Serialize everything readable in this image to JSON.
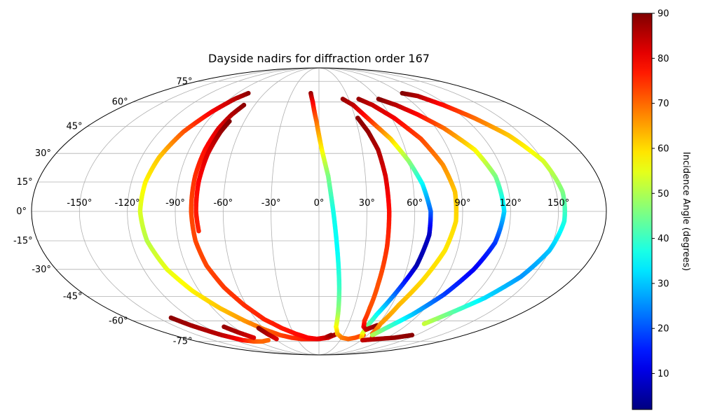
{
  "chart_data": {
    "type": "scatter",
    "title": "Dayside nadirs for diffraction order 167",
    "projection": "mollweide",
    "grid": true,
    "lon_ticks": [
      -150,
      -120,
      -90,
      -60,
      -30,
      0,
      30,
      60,
      90,
      120,
      150
    ],
    "lat_ticks": [
      -75,
      -60,
      -45,
      -30,
      -15,
      0,
      15,
      30,
      45,
      60,
      75
    ],
    "lon_tick_labels": [
      "-150°",
      "-120°",
      "-90°",
      "-60°",
      "-30°",
      "0°",
      "30°",
      "60°",
      "90°",
      "120°",
      "150°"
    ],
    "lat_tick_labels": [
      "-75°",
      "-60°",
      "-45°",
      "-30°",
      "-15°",
      "0°",
      "15°",
      "30°",
      "45°",
      "60°",
      "75°"
    ],
    "colorbar": {
      "label": "Incidence Angle (degrees)",
      "colormap": "jet",
      "range": [
        2,
        90
      ],
      "ticks": [
        10,
        20,
        30,
        40,
        50,
        60,
        70,
        80,
        90
      ]
    },
    "series": [
      {
        "points": [
          [
            -78,
            66,
            89
          ],
          [
            -85,
            62,
            85
          ],
          [
            -93,
            54,
            80
          ],
          [
            -102,
            42,
            72
          ],
          [
            -108,
            28,
            62
          ],
          [
            -111,
            15,
            58
          ],
          [
            -112,
            0,
            54
          ],
          [
            -110,
            -15,
            51
          ],
          [
            -104,
            -30,
            55
          ],
          [
            -95,
            -42,
            58
          ],
          [
            -84,
            -52,
            62
          ],
          [
            -72,
            -60,
            66
          ],
          [
            -60,
            -66,
            70
          ],
          [
            -48,
            -70,
            73
          ],
          [
            -36,
            -72,
            75
          ],
          [
            -24,
            -73,
            76
          ],
          [
            -12,
            -73,
            77
          ],
          [
            0,
            -73,
            78
          ],
          [
            12,
            -72,
            82
          ],
          [
            22,
            -69,
            87
          ]
        ]
      },
      {
        "points": [
          [
            -70,
            58,
            89
          ],
          [
            -74,
            52,
            86
          ],
          [
            -77,
            44,
            82
          ],
          [
            -79,
            32,
            78
          ],
          [
            -80,
            18,
            75
          ],
          [
            -80,
            0,
            73
          ],
          [
            -79,
            -15,
            73
          ],
          [
            -76,
            -28,
            73
          ],
          [
            -70,
            -40,
            74
          ],
          [
            -62,
            -50,
            75
          ],
          [
            -52,
            -59,
            76
          ],
          [
            -40,
            -65,
            77
          ],
          [
            -28,
            -69,
            78
          ],
          [
            -15,
            -72,
            79
          ],
          [
            -3,
            -73,
            80
          ],
          [
            8,
            -72,
            83
          ],
          [
            15,
            -70,
            88
          ]
        ]
      },
      {
        "points": [
          [
            -72,
            48,
            90
          ],
          [
            -74,
            42,
            88
          ],
          [
            -76,
            30,
            82
          ],
          [
            -77,
            15,
            79
          ],
          [
            -77,
            0,
            77
          ],
          [
            -76,
            -10,
            76
          ]
        ]
      },
      {
        "points": [
          [
            -9,
            66,
            88
          ],
          [
            -6,
            60,
            80
          ],
          [
            -2,
            48,
            70
          ],
          [
            2,
            32,
            58
          ],
          [
            6,
            18,
            46
          ],
          [
            9,
            0,
            37
          ],
          [
            12,
            -20,
            35
          ],
          [
            15,
            -40,
            40
          ],
          [
            17,
            -55,
            48
          ],
          [
            18,
            -64,
            56
          ],
          [
            22,
            -69,
            62
          ],
          [
            30,
            -72,
            68
          ],
          [
            40,
            -73,
            70
          ],
          [
            48,
            -72,
            72
          ],
          [
            55,
            -70,
            73
          ]
        ]
      },
      {
        "points": [
          [
            24,
            62,
            88
          ],
          [
            32,
            58,
            85
          ],
          [
            42,
            48,
            75
          ],
          [
            52,
            38,
            62
          ],
          [
            60,
            26,
            48
          ],
          [
            66,
            14,
            35
          ],
          [
            70,
            0,
            22
          ],
          [
            70,
            -12,
            8
          ],
          [
            66,
            -28,
            6
          ],
          [
            58,
            -44,
            22
          ],
          [
            52,
            -56,
            35
          ],
          [
            50,
            -64,
            45
          ],
          [
            52,
            -69,
            55
          ],
          [
            56,
            -72,
            62
          ]
        ]
      },
      {
        "points": [
          [
            32,
            50,
            89
          ],
          [
            37,
            42,
            88
          ],
          [
            41,
            32,
            86
          ],
          [
            43,
            18,
            82
          ],
          [
            44,
            0,
            78
          ],
          [
            44,
            -18,
            75
          ],
          [
            43,
            -38,
            72
          ],
          [
            43,
            -52,
            72
          ],
          [
            44,
            -60,
            75
          ],
          [
            47,
            -64,
            80
          ],
          [
            52,
            -66,
            84
          ],
          [
            60,
            -63,
            89
          ]
        ]
      },
      {
        "points": [
          [
            40,
            62,
            88
          ],
          [
            50,
            58,
            84
          ],
          [
            62,
            50,
            80
          ],
          [
            74,
            38,
            73
          ],
          [
            82,
            24,
            67
          ],
          [
            86,
            10,
            62
          ],
          [
            86,
            -5,
            60
          ],
          [
            82,
            -20,
            59
          ],
          [
            74,
            -36,
            60
          ],
          [
            66,
            -50,
            63
          ],
          [
            62,
            -62,
            66
          ],
          [
            64,
            -69,
            70
          ],
          [
            70,
            -72,
            74
          ]
        ]
      },
      {
        "points": [
          [
            60,
            62,
            90
          ],
          [
            72,
            58,
            85
          ],
          [
            84,
            52,
            79
          ],
          [
            96,
            44,
            70
          ],
          [
            108,
            32,
            58
          ],
          [
            114,
            18,
            46
          ],
          [
            116,
            0,
            32
          ],
          [
            113,
            -16,
            18
          ],
          [
            106,
            -30,
            12
          ],
          [
            96,
            -44,
            18
          ],
          [
            84,
            -56,
            30
          ],
          [
            72,
            -65,
            42
          ],
          [
            66,
            -70,
            50
          ]
        ]
      },
      {
        "points": [
          [
            92,
            66,
            90
          ],
          [
            104,
            64,
            86
          ],
          [
            116,
            58,
            78
          ],
          [
            128,
            50,
            70
          ],
          [
            140,
            40,
            62
          ],
          [
            150,
            26,
            54
          ],
          [
            154,
            10,
            46
          ],
          [
            154,
            -5,
            38
          ],
          [
            150,
            -20,
            30
          ],
          [
            142,
            -34,
            26
          ],
          [
            130,
            -46,
            32
          ],
          [
            118,
            -54,
            42
          ],
          [
            106,
            -62,
            52
          ]
        ]
      },
      {
        "points": [
          [
            -138,
            -58,
            89
          ],
          [
            -132,
            -63,
            87
          ],
          [
            -120,
            -70,
            85
          ],
          [
            -108,
            -74,
            78
          ],
          [
            -96,
            -75,
            72
          ],
          [
            -84,
            -75,
            70
          ],
          [
            -72,
            -74,
            70
          ]
        ]
      },
      {
        "points": [
          [
            -100,
            -64,
            88
          ],
          [
            -94,
            -68,
            86
          ],
          [
            -86,
            -72,
            82
          ]
        ]
      },
      {
        "points": [
          [
            -65,
            -65,
            89
          ],
          [
            -62,
            -69,
            86
          ],
          [
            -58,
            -73,
            82
          ]
        ]
      },
      {
        "points": [
          [
            62,
            -74,
            84
          ],
          [
            80,
            -73,
            86
          ],
          [
            100,
            -72,
            88
          ],
          [
            115,
            -70,
            89
          ]
        ]
      }
    ]
  }
}
